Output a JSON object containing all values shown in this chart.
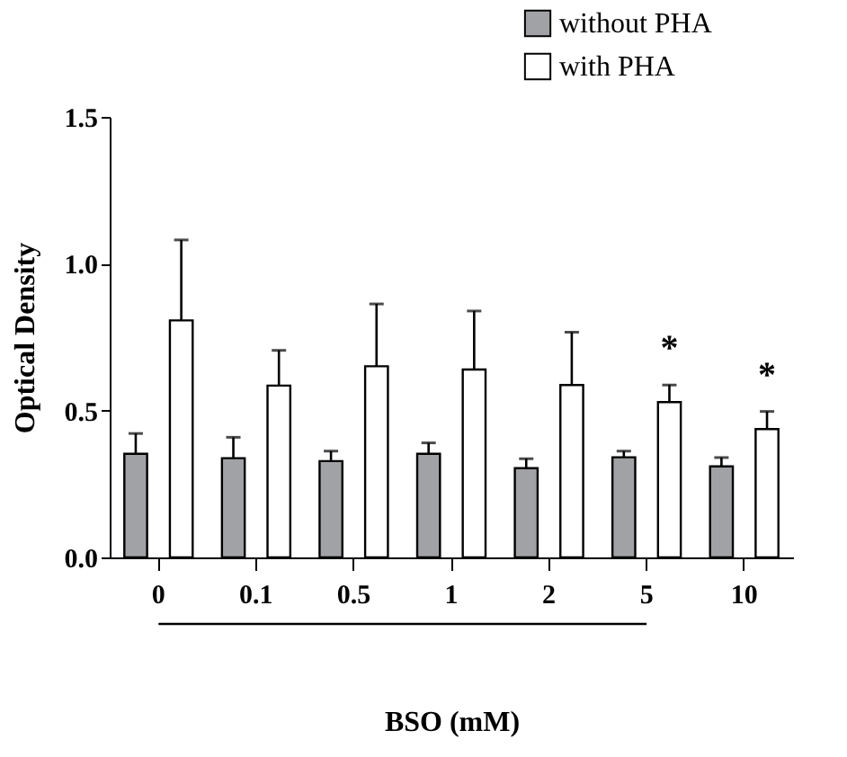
{
  "chart_data": {
    "type": "bar",
    "xlabel": "BSO (mM)",
    "ylabel": "Optical Density",
    "categories": [
      "0",
      "0.1",
      "0.5",
      "1",
      "2",
      "5",
      "10"
    ],
    "series": [
      {
        "name": "without PHA",
        "color": "#a0a2a5",
        "values": [
          0.353,
          0.338,
          0.328,
          0.353,
          0.304,
          0.341,
          0.31
        ],
        "errors": [
          [
            0.353,
            0.422
          ],
          [
            0.338,
            0.409
          ],
          [
            0.328,
            0.362
          ],
          [
            0.353,
            0.39
          ],
          [
            0.304,
            0.336
          ],
          [
            0.341,
            0.362
          ],
          [
            0.31,
            0.34
          ]
        ]
      },
      {
        "name": "with PHA",
        "color": "#ffffff",
        "values": [
          0.807,
          0.585,
          0.651,
          0.64,
          0.587,
          0.529,
          0.437
        ],
        "errors": [
          [
            0.807,
            1.081
          ],
          [
            0.585,
            0.705
          ],
          [
            0.651,
            0.863
          ],
          [
            0.64,
            0.839
          ],
          [
            0.587,
            0.767
          ],
          [
            0.529,
            0.587
          ],
          [
            0.437,
            0.497
          ]
        ]
      }
    ],
    "ylim": [
      0,
      1.5
    ],
    "yticks": [
      {
        "value": 0,
        "label": "0.0"
      },
      {
        "value": 0.5,
        "label": "0.5"
      },
      {
        "value": 1,
        "label": "1.0"
      },
      {
        "value": 1.5,
        "label": "1.5"
      }
    ],
    "annotations": [
      "*",
      "*"
    ],
    "legend": "top right",
    "grid": false
  }
}
